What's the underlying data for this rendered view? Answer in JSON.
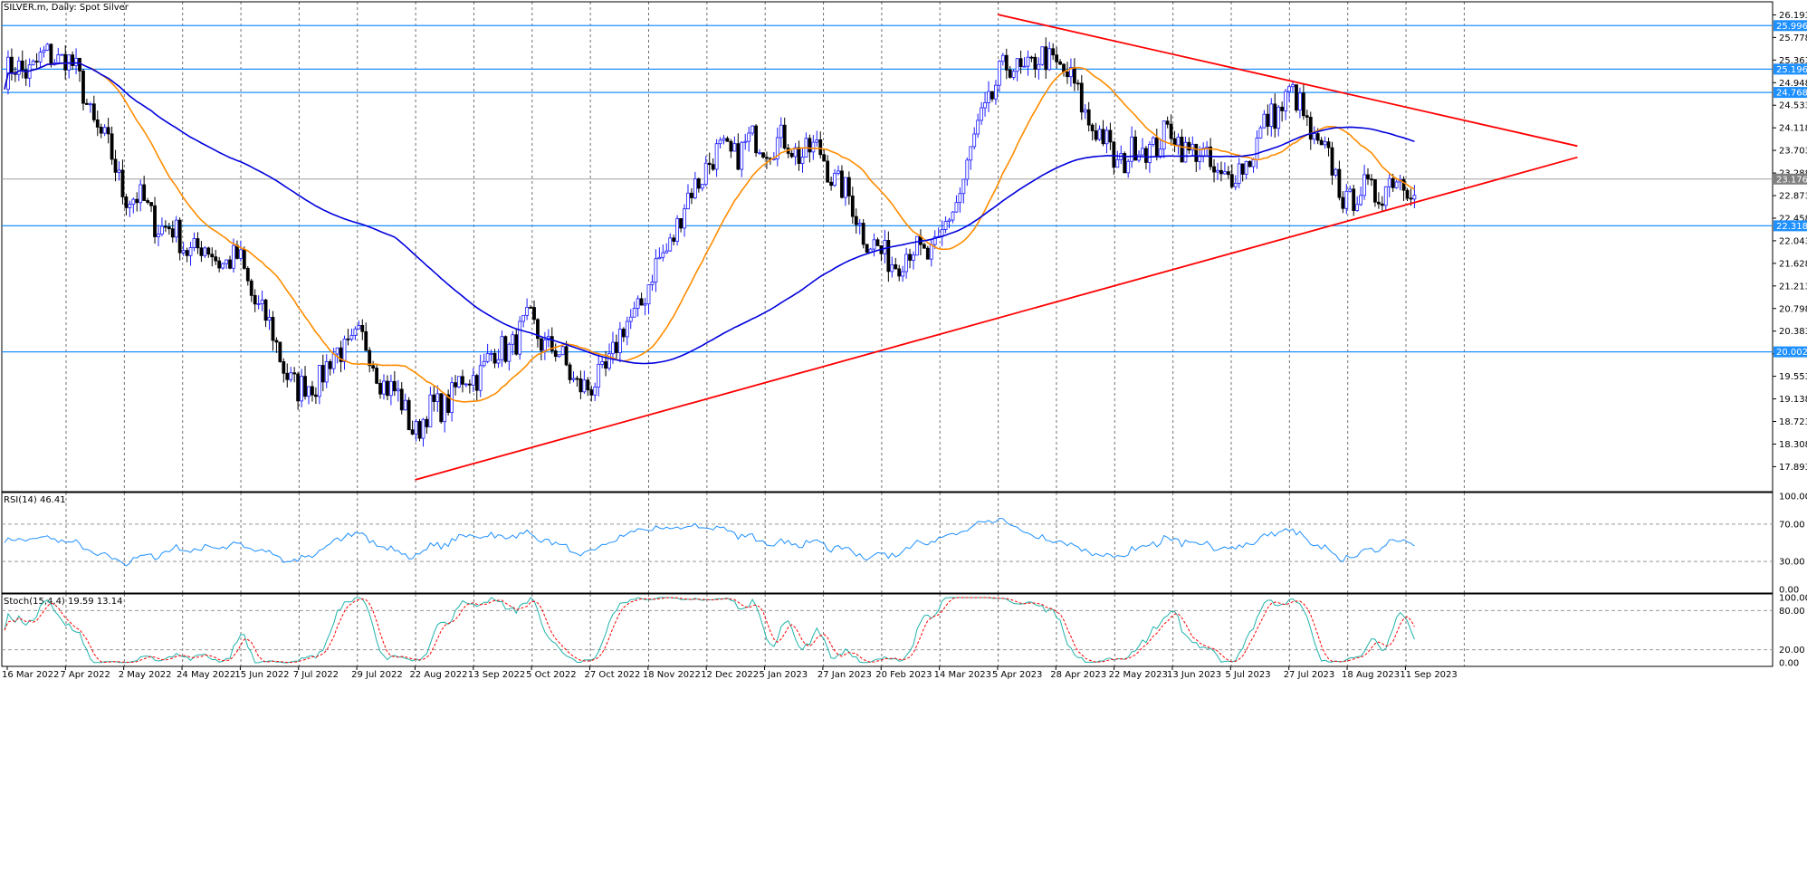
{
  "title": "SILVER.m, Daily:  Spot Silver",
  "colors": {
    "up": "#1a1aff",
    "down": "#000000",
    "ma_fast": "#ff8c00",
    "ma_slow": "#0000dd",
    "hline": "#1e90ff",
    "trend": "#ff0000",
    "osc": "#1e90ff",
    "signal": "#ff0000",
    "grid": "#000000",
    "current": "#a0a0a0"
  },
  "price_axis": {
    "ticks": [
      "26.193",
      "25.778",
      "25.363",
      "24.948",
      "24.533",
      "24.118",
      "23.703",
      "23.288",
      "22.873",
      "22.458",
      "22.043",
      "21.628",
      "21.213",
      "20.798",
      "20.383",
      "19.968",
      "19.553",
      "19.138",
      "18.723",
      "18.308",
      "17.893"
    ],
    "current_price": "23.176"
  },
  "date_axis": [
    "16 Mar 2022",
    "7 Apr 2022",
    "2 May 2022",
    "24 May 2022",
    "15 Jun 2022",
    "7 Jul 2022",
    "29 Jul 2022",
    "22 Aug 2022",
    "13 Sep 2022",
    "5 Oct 2022",
    "27 Oct 2022",
    "18 Nov 2022",
    "12 Dec 2022",
    "5 Jan 2023",
    "27 Jan 2023",
    "20 Feb 2023",
    "14 Mar 2023",
    "5 Apr 2023",
    "28 Apr 2023",
    "22 May 2023",
    "13 Jun 2023",
    "5 Jul 2023",
    "27 Jul 2023",
    "18 Aug 2023",
    "11 Sep 2023"
  ],
  "rsi": {
    "label": "RSI(14) 46.41",
    "ticks": [
      "100.00",
      "70.00",
      "30.00",
      "0.00"
    ]
  },
  "stoch": {
    "label": "Stoch(15,4,4) 19.59 13.14",
    "ticks": [
      "100.00",
      "80.00",
      "20.00",
      "0.00"
    ]
  },
  "chart_data": {
    "type": "candlestick",
    "instrument": "SILVER.m",
    "timeframe": "Daily",
    "horizontal_levels": [
      "25.996",
      "25.196",
      "24.768",
      "22.318",
      "20.002"
    ],
    "ylim": [
      17.6,
      26.3
    ],
    "trendlines": [
      {
        "from": [
          "22 Aug 2022",
          17.65
        ],
        "to": [
          "11 Sep 2023",
          22.7
        ]
      },
      {
        "from": [
          "5 Apr 2023",
          26.2
        ],
        "to": [
          "11 Sep 2023",
          24.5
        ]
      }
    ],
    "anchors": [
      [
        "16 Mar 2022",
        25.1
      ],
      [
        "7 Apr 2022",
        25.5
      ],
      [
        "2 May 2022",
        23.0
      ],
      [
        "24 May 2022",
        22.0
      ],
      [
        "15 Jun 2022",
        21.6
      ],
      [
        "7 Jul 2022",
        19.2
      ],
      [
        "29 Jul 2022",
        20.3
      ],
      [
        "22 Aug 2022",
        18.6
      ],
      [
        "13 Sep 2022",
        19.6
      ],
      [
        "5 Oct 2022",
        20.5
      ],
      [
        "27 Oct 2022",
        19.2
      ],
      [
        "18 Nov 2022",
        21.2
      ],
      [
        "12 Dec 2022",
        23.5
      ],
      [
        "5 Jan 2023",
        23.9
      ],
      [
        "27 Jan 2023",
        23.6
      ],
      [
        "20 Feb 2023",
        21.7
      ],
      [
        "14 Mar 2023",
        21.9
      ],
      [
        "5 Apr 2023",
        25.1
      ],
      [
        "28 Apr 2023",
        25.4
      ],
      [
        "22 May 2023",
        23.5
      ],
      [
        "13 Jun 2023",
        24.0
      ],
      [
        "5 Jul 2023",
        23.1
      ],
      [
        "27 Jul 2023",
        24.8
      ],
      [
        "18 Aug 2023",
        22.8
      ],
      [
        "11 Sep 2023",
        23.176
      ]
    ]
  }
}
